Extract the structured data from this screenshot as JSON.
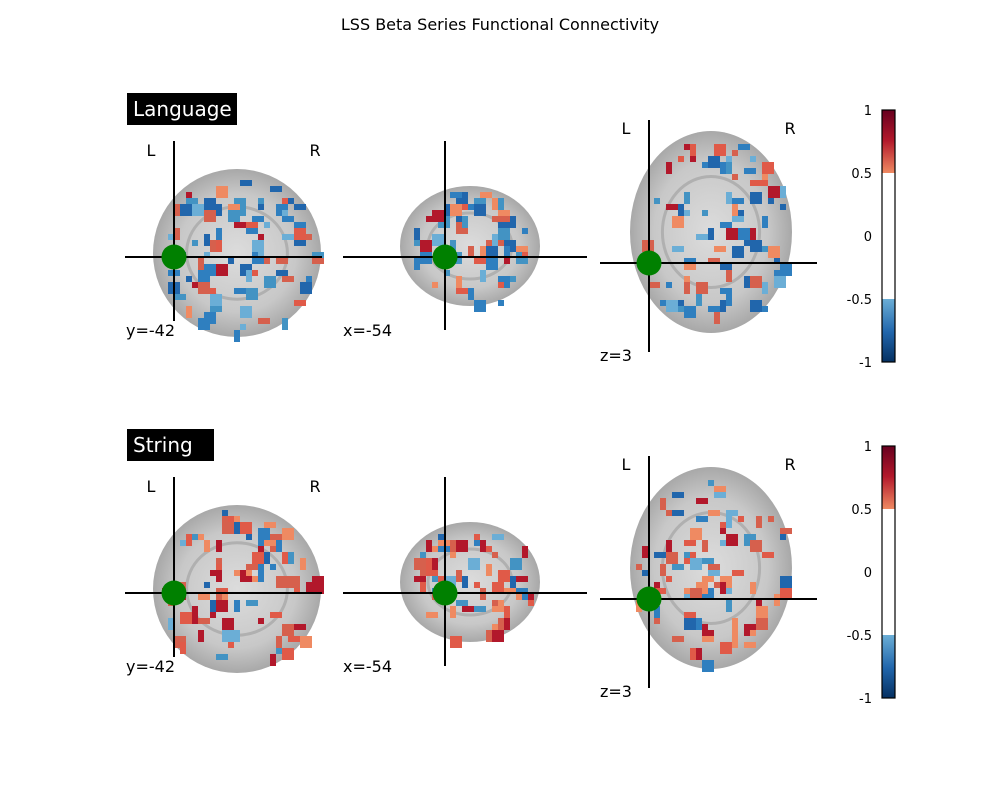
{
  "title": "LSS Beta Series Functional Connectivity",
  "chart_data": {
    "type": "heatmap",
    "title": "LSS Beta Series Functional Connectivity",
    "colormap": "diverging blue-white-red",
    "colorbar": {
      "range": [
        -1,
        1
      ],
      "ticks": [
        "1",
        "0.5",
        "0",
        "-0.5",
        "-1"
      ],
      "threshold": 0.5
    },
    "colors": {
      "marker": "#008000",
      "positive": "#d6604d",
      "negative": "#4393c3",
      "label_bg": "#000000"
    },
    "rows": [
      {
        "label": "Language",
        "views": [
          {
            "orientation_left": "L",
            "orientation_right": "R",
            "coord": "y=-42"
          },
          {
            "coord": "x=-54"
          },
          {
            "orientation_left": "L",
            "orientation_right": "R",
            "coord": "z=3"
          }
        ]
      },
      {
        "label": "String",
        "views": [
          {
            "orientation_left": "L",
            "orientation_right": "R",
            "coord": "y=-42"
          },
          {
            "coord": "x=-54"
          },
          {
            "orientation_left": "L",
            "orientation_right": "R",
            "coord": "z=3"
          }
        ]
      }
    ]
  }
}
